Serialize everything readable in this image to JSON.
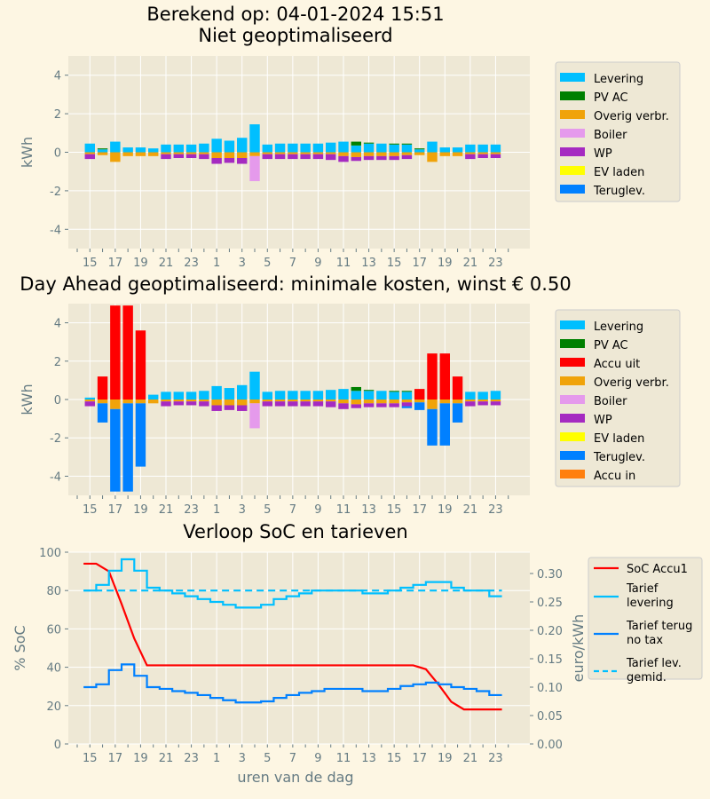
{
  "figure": {
    "bg": "#fdf6e3",
    "axes_bg": "#eee8d5",
    "grid": "#ffffff",
    "tick_color": "#657b83"
  },
  "chart_data": [
    {
      "id": "top",
      "type": "bar",
      "stacked": true,
      "title": "Berekend op: 04-01-2024 15:51\nNiet geoptimaliseerd",
      "xlabel": "",
      "ylabel": "kWh",
      "ylim": [
        -5,
        5
      ],
      "yticks": [
        -4,
        -2,
        0,
        2,
        4
      ],
      "grid": true,
      "legend_placement": "outside-right",
      "categories": [
        15,
        16,
        17,
        18,
        19,
        20,
        21,
        22,
        23,
        0,
        1,
        2,
        3,
        4,
        5,
        6,
        7,
        8,
        9,
        10,
        11,
        12,
        13,
        14,
        15,
        16,
        17,
        18,
        19,
        20,
        21,
        22,
        23
      ],
      "xtick_labels": [
        "15",
        "17",
        "19",
        "21",
        "23",
        "1",
        "3",
        "5",
        "7",
        "9",
        "11",
        "13",
        "15",
        "17",
        "19",
        "21",
        "23"
      ],
      "series": [
        {
          "name": "Levering",
          "color": "#00bfff",
          "values": [
            0.45,
            0.15,
            0.55,
            0.25,
            0.25,
            0.2,
            0.4,
            0.4,
            0.4,
            0.45,
            0.7,
            0.6,
            0.75,
            1.45,
            0.4,
            0.45,
            0.45,
            0.45,
            0.45,
            0.5,
            0.55,
            0.35,
            0.45,
            0.45,
            0.4,
            0.4,
            0.15,
            0.55,
            0.25,
            0.25,
            0.4,
            0.4,
            0.4
          ]
        },
        {
          "name": "PV AC",
          "color": "#008000",
          "values": [
            0,
            0.05,
            0,
            0,
            0,
            0,
            0,
            0,
            0,
            0,
            0,
            0,
            0,
            0,
            0,
            0,
            0,
            0,
            0,
            0,
            0,
            0.2,
            0.05,
            0,
            0.05,
            0.05,
            0.05,
            0,
            0,
            0,
            0,
            0,
            0
          ]
        },
        {
          "name": "Overig verbr.",
          "color": "#f0a30a",
          "values": [
            -0.1,
            -0.15,
            -0.5,
            -0.2,
            -0.2,
            -0.2,
            -0.1,
            -0.1,
            -0.1,
            -0.1,
            -0.3,
            -0.3,
            -0.3,
            -0.2,
            -0.1,
            -0.1,
            -0.1,
            -0.1,
            -0.1,
            -0.1,
            -0.2,
            -0.25,
            -0.2,
            -0.2,
            -0.2,
            -0.15,
            -0.15,
            -0.5,
            -0.2,
            -0.2,
            -0.1,
            -0.1,
            -0.1
          ]
        },
        {
          "name": "Boiler",
          "color": "#e59aec",
          "values": [
            0,
            0,
            0,
            0,
            0,
            0,
            0,
            0,
            0,
            0,
            0,
            0,
            0,
            -1.3,
            0,
            0,
            0,
            0,
            0,
            0,
            0,
            0,
            0,
            0,
            0,
            0,
            0,
            0,
            0,
            0,
            0,
            0,
            0
          ]
        },
        {
          "name": "WP",
          "color": "#a52ac1",
          "values": [
            -0.25,
            0,
            0,
            0,
            0,
            0,
            -0.25,
            -0.2,
            -0.2,
            -0.25,
            -0.3,
            -0.25,
            -0.3,
            0,
            -0.25,
            -0.25,
            -0.25,
            -0.25,
            -0.25,
            -0.3,
            -0.3,
            -0.2,
            -0.2,
            -0.2,
            -0.2,
            -0.2,
            0,
            0,
            0,
            0,
            -0.25,
            -0.2,
            -0.2
          ]
        },
        {
          "name": "EV laden",
          "color": "#ffff00",
          "values": [
            0,
            0,
            0,
            0,
            0,
            0,
            0,
            0,
            0,
            0,
            0,
            0,
            0,
            0,
            0,
            0,
            0,
            0,
            0,
            0,
            0,
            0,
            0,
            0,
            0,
            0,
            0,
            0,
            0,
            0,
            0,
            0,
            0
          ]
        },
        {
          "name": "Teruglev.",
          "color": "#0080ff",
          "values": [
            0,
            0,
            0,
            0,
            0,
            0,
            0,
            0,
            0,
            0,
            0,
            0,
            0,
            0,
            0,
            0,
            0,
            0,
            0,
            0,
            0,
            0,
            0,
            0,
            0,
            0,
            0,
            0,
            0,
            0,
            0,
            0,
            0
          ]
        }
      ]
    },
    {
      "id": "mid",
      "type": "bar",
      "stacked": true,
      "title": "Day Ahead geoptimaliseerd: minimale kosten, winst € 0.50",
      "xlabel": "",
      "ylabel": "kWh",
      "ylim": [
        -5,
        5
      ],
      "yticks": [
        -4,
        -2,
        0,
        2,
        4
      ],
      "grid": true,
      "legend_placement": "outside-right",
      "categories": [
        15,
        16,
        17,
        18,
        19,
        20,
        21,
        22,
        23,
        0,
        1,
        2,
        3,
        4,
        5,
        6,
        7,
        8,
        9,
        10,
        11,
        12,
        13,
        14,
        15,
        16,
        17,
        18,
        19,
        20,
        21,
        22,
        23
      ],
      "xtick_labels": [
        "15",
        "17",
        "19",
        "21",
        "23",
        "1",
        "3",
        "5",
        "7",
        "9",
        "11",
        "13",
        "15",
        "17",
        "19",
        "21",
        "23"
      ],
      "series": [
        {
          "name": "Levering",
          "color": "#00bfff",
          "values": [
            0.1,
            0,
            0,
            0,
            0,
            0.25,
            0.4,
            0.4,
            0.4,
            0.45,
            0.7,
            0.6,
            0.75,
            1.45,
            0.4,
            0.45,
            0.45,
            0.45,
            0.45,
            0.5,
            0.55,
            0.45,
            0.45,
            0.45,
            0.4,
            0.4,
            0,
            0,
            0,
            0,
            0.4,
            0.4,
            0.45
          ]
        },
        {
          "name": "PV AC",
          "color": "#008000",
          "values": [
            0,
            0,
            0,
            0,
            0,
            0,
            0,
            0,
            0,
            0,
            0,
            0,
            0,
            0,
            0,
            0,
            0,
            0,
            0,
            0,
            0,
            0.2,
            0.05,
            0,
            0.05,
            0.05,
            0,
            0,
            0,
            0,
            0,
            0,
            0
          ]
        },
        {
          "name": "Accu uit",
          "color": "#ff0000",
          "values": [
            0,
            1.2,
            4.9,
            4.9,
            3.6,
            0,
            0,
            0,
            0,
            0,
            0,
            0,
            0,
            0,
            0,
            0,
            0,
            0,
            0,
            0,
            0,
            0,
            0,
            0,
            0,
            0,
            0.55,
            2.4,
            2.4,
            1.2,
            0,
            0,
            0
          ]
        },
        {
          "name": "Overig verbr.",
          "color": "#f0a30a",
          "values": [
            -0.1,
            -0.2,
            -0.5,
            -0.2,
            -0.2,
            -0.2,
            -0.1,
            -0.1,
            -0.1,
            -0.1,
            -0.3,
            -0.3,
            -0.3,
            -0.2,
            -0.1,
            -0.1,
            -0.1,
            -0.1,
            -0.1,
            -0.1,
            -0.2,
            -0.25,
            -0.2,
            -0.2,
            -0.2,
            -0.15,
            -0.15,
            -0.5,
            -0.2,
            -0.2,
            -0.1,
            -0.1,
            -0.1
          ]
        },
        {
          "name": "Boiler",
          "color": "#e59aec",
          "values": [
            0,
            0,
            0,
            0,
            0,
            0,
            0,
            0,
            0,
            0,
            0,
            0,
            0,
            -1.3,
            0,
            0,
            0,
            0,
            0,
            0,
            0,
            0,
            0,
            0,
            0,
            0,
            0,
            0,
            0,
            0,
            0,
            0,
            0
          ]
        },
        {
          "name": "WP",
          "color": "#a52ac1",
          "values": [
            -0.25,
            0,
            0,
            0,
            0,
            0,
            -0.25,
            -0.2,
            -0.2,
            -0.25,
            -0.3,
            -0.25,
            -0.3,
            0,
            -0.25,
            -0.25,
            -0.25,
            -0.25,
            -0.25,
            -0.3,
            -0.3,
            -0.2,
            -0.2,
            -0.2,
            -0.2,
            -0.2,
            0,
            0,
            0,
            0,
            -0.25,
            -0.2,
            -0.2
          ]
        },
        {
          "name": "EV laden",
          "color": "#ffff00",
          "values": [
            0,
            0,
            0,
            0,
            0,
            0,
            0,
            0,
            0,
            0,
            0,
            0,
            0,
            0,
            0,
            0,
            0,
            0,
            0,
            0,
            0,
            0,
            0,
            0,
            0,
            0,
            0,
            0,
            0,
            0,
            0,
            0,
            0
          ]
        },
        {
          "name": "Teruglev.",
          "color": "#0080ff",
          "values": [
            0,
            -1.0,
            -4.3,
            -4.6,
            -3.3,
            0,
            0,
            0,
            0,
            0,
            0,
            0,
            0,
            0,
            0,
            0,
            0,
            0,
            0,
            0,
            0,
            0,
            0,
            0,
            0,
            -0.1,
            -0.4,
            -1.9,
            -2.2,
            -1.0,
            0,
            0,
            0
          ]
        },
        {
          "name": "Accu in",
          "color": "#ff7f0e",
          "values": [
            0,
            0,
            0,
            0,
            0,
            0,
            0,
            0,
            0,
            0,
            0,
            0,
            0,
            0,
            0,
            0,
            0,
            0,
            0,
            0,
            0,
            0,
            0,
            0,
            0,
            0,
            0,
            0,
            0,
            0,
            0,
            0,
            0
          ]
        }
      ]
    },
    {
      "id": "bottom",
      "type": "line",
      "title": "Verloop SoC en tarieven",
      "xlabel": "uren van de dag",
      "ylabel": "% SoC",
      "ylabel_right": "euro/kWh",
      "ylim": [
        0,
        100
      ],
      "yticks": [
        0,
        20,
        40,
        60,
        80,
        100
      ],
      "ylim_right": [
        0,
        0.3375
      ],
      "yticks_right": [
        "0.00",
        "0.05",
        "0.10",
        "0.15",
        "0.20",
        "0.25",
        "0.30"
      ],
      "grid": true,
      "legend_placement": "outside-right",
      "categories": [
        15,
        16,
        17,
        18,
        19,
        20,
        21,
        22,
        23,
        0,
        1,
        2,
        3,
        4,
        5,
        6,
        7,
        8,
        9,
        10,
        11,
        12,
        13,
        14,
        15,
        16,
        17,
        18,
        19,
        20,
        21,
        22,
        23
      ],
      "xtick_labels": [
        "15",
        "17",
        "19",
        "21",
        "23",
        "1",
        "3",
        "5",
        "7",
        "9",
        "11",
        "13",
        "15",
        "17",
        "19",
        "21",
        "23"
      ],
      "soc": {
        "name": "SoC Accu1",
        "color": "#ff0000",
        "x": [
          0,
          1,
          2,
          3,
          4,
          5,
          6,
          7,
          8,
          9,
          10,
          11,
          12,
          13,
          14,
          15,
          16,
          17,
          18,
          19,
          20,
          21,
          22,
          23,
          24,
          25,
          26,
          27,
          28,
          29,
          30,
          31,
          32,
          33
        ],
        "values": [
          94,
          94,
          90,
          73,
          55,
          41,
          41,
          41,
          41,
          41,
          41,
          41,
          41,
          41,
          41,
          41,
          41,
          41,
          41,
          41,
          41,
          41,
          41,
          41,
          41,
          41,
          41,
          39,
          31,
          22,
          18,
          18,
          18,
          18
        ]
      },
      "steps": [
        {
          "name": "Tarief\nlevering",
          "color": "#00bfff",
          "dashed": false,
          "values": [
            0.27,
            0.28,
            0.305,
            0.325,
            0.305,
            0.275,
            0.27,
            0.265,
            0.26,
            0.255,
            0.25,
            0.245,
            0.24,
            0.24,
            0.245,
            0.255,
            0.26,
            0.265,
            0.27,
            0.27,
            0.27,
            0.27,
            0.265,
            0.265,
            0.27,
            0.275,
            0.28,
            0.285,
            0.285,
            0.275,
            0.27,
            0.27,
            0.26
          ]
        },
        {
          "name": "Tarief terug\nno tax",
          "color": "#0080ff",
          "dashed": false,
          "values": [
            0.1,
            0.105,
            0.13,
            0.14,
            0.12,
            0.1,
            0.097,
            0.093,
            0.09,
            0.086,
            0.081,
            0.077,
            0.073,
            0.073,
            0.075,
            0.081,
            0.086,
            0.09,
            0.093,
            0.097,
            0.097,
            0.097,
            0.093,
            0.093,
            0.097,
            0.102,
            0.105,
            0.108,
            0.105,
            0.1,
            0.097,
            0.093,
            0.086
          ]
        },
        {
          "name": "Tarief lev.\ngemid.",
          "color": "#00bfff",
          "dashed": true,
          "constant": 0.27
        }
      ]
    }
  ]
}
